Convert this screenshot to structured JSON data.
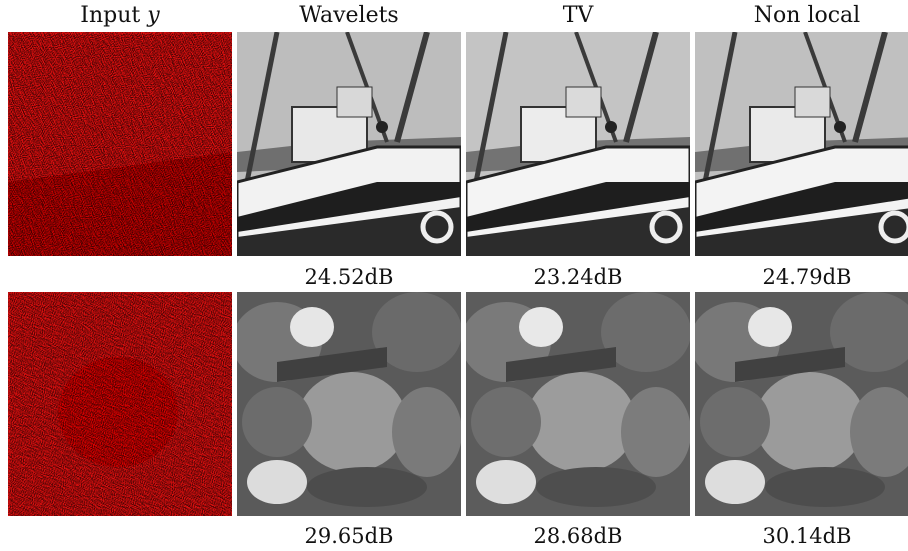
{
  "columns": [
    {
      "title": "Input ",
      "italic": "y"
    },
    {
      "title": "Wavelets"
    },
    {
      "title": "TV"
    },
    {
      "title": "Non local"
    }
  ],
  "rows": [
    {
      "scene": "boat",
      "psnr": [
        "24.52dB",
        "23.24dB",
        "24.79dB"
      ]
    },
    {
      "scene": "peppers",
      "psnr": [
        "29.65dB",
        "28.68dB",
        "30.14dB"
      ]
    }
  ],
  "colors": {
    "noise": "#ff0000"
  }
}
